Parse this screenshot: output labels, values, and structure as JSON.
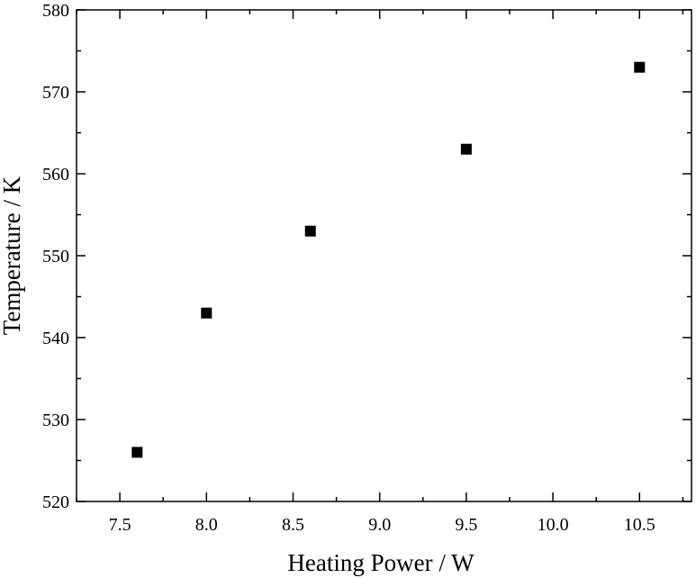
{
  "chart_data": {
    "type": "scatter",
    "title": "",
    "xlabel": "Heating Power / W",
    "ylabel": "Temperature / K",
    "xlim": [
      7.25,
      10.8
    ],
    "ylim": [
      520,
      580
    ],
    "x_ticks": [
      "7.5",
      "8.0",
      "8.5",
      "9.0",
      "9.5",
      "10.0",
      "10.5"
    ],
    "y_ticks": [
      "520",
      "530",
      "540",
      "550",
      "560",
      "570",
      "580"
    ],
    "grid": false,
    "marker": "square",
    "marker_color": "#000000",
    "series": [
      {
        "points": [
          {
            "x": 7.6,
            "y": 526
          },
          {
            "x": 8.0,
            "y": 543
          },
          {
            "x": 8.6,
            "y": 553
          },
          {
            "x": 9.5,
            "y": 563
          },
          {
            "x": 10.5,
            "y": 573
          }
        ]
      }
    ]
  }
}
